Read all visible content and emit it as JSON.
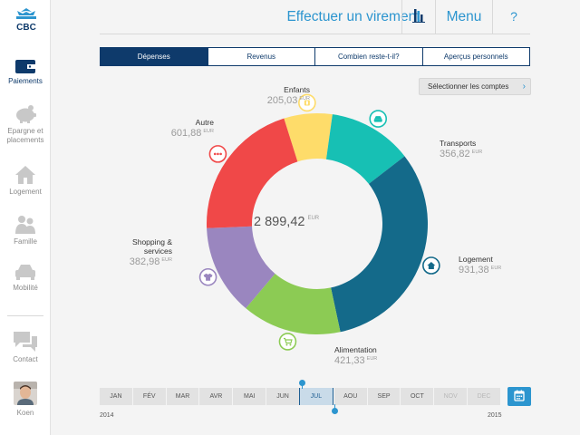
{
  "brand": {
    "logo_text": "CBC",
    "primary": "#0e3a6b",
    "accent": "#2c95cf"
  },
  "sidebar": {
    "items": [
      {
        "label": "Paiements",
        "icon": "wallet-icon",
        "active": true
      },
      {
        "label": "Epargne et placements",
        "icon": "piggy-bank-icon"
      },
      {
        "label": "Logement",
        "icon": "house-icon"
      },
      {
        "label": "Famille",
        "icon": "family-icon"
      },
      {
        "label": "Mobilité",
        "icon": "car-icon"
      },
      {
        "label": "Contact",
        "icon": "chat-icon"
      },
      {
        "label": "Koen",
        "icon": "avatar"
      }
    ]
  },
  "header": {
    "virement_label": "Effectuer un virement",
    "menu_label": "Menu",
    "help_label": "?"
  },
  "tabs": [
    {
      "label": "Dépenses",
      "active": true
    },
    {
      "label": "Revenus"
    },
    {
      "label": "Combien reste-t-il?"
    },
    {
      "label": "Aperçus personnels"
    }
  ],
  "select_accounts_label": "Sélectionner les comptes",
  "summary": {
    "total": "2 899,42",
    "currency": "EUR"
  },
  "chart_data": {
    "type": "pie",
    "variant": "donut",
    "currency": "EUR",
    "categories": [
      {
        "name": "Enfants",
        "value": 205.03,
        "display": "205,03",
        "color": "#fedc6a",
        "icon": "child-icon"
      },
      {
        "name": "Transports",
        "value": 356.82,
        "display": "356,82",
        "color": "#17c0b4",
        "icon": "car-icon"
      },
      {
        "name": "Logement",
        "value": 931.38,
        "display": "931,38",
        "color": "#146a8a",
        "icon": "house-icon"
      },
      {
        "name": "Alimentation",
        "value": 421.33,
        "display": "421,33",
        "color": "#8ccb54",
        "icon": "cart-icon"
      },
      {
        "name": "Shopping & services",
        "value": 382.98,
        "display": "382,98",
        "color": "#9a86bf",
        "icon": "shirt-icon"
      },
      {
        "name": "Autre",
        "value": 601.88,
        "display": "601,88",
        "color": "#f04848",
        "icon": "dots-icon"
      }
    ]
  },
  "timeline": {
    "months": [
      {
        "label": "JAN"
      },
      {
        "label": "FÉV"
      },
      {
        "label": "MAR"
      },
      {
        "label": "AVR"
      },
      {
        "label": "MAI"
      },
      {
        "label": "JUN"
      },
      {
        "label": "JUL",
        "selected": true
      },
      {
        "label": "AOU"
      },
      {
        "label": "SEP"
      },
      {
        "label": "OCT"
      },
      {
        "label": "NOV",
        "disabled": true
      },
      {
        "label": "DEC",
        "disabled": true
      }
    ],
    "year_start": "2014",
    "year_end": "2015"
  }
}
